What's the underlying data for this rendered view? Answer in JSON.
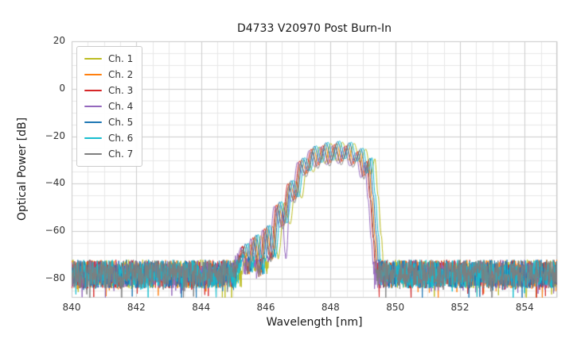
{
  "chart_data": {
    "type": "line",
    "title": "D4733 V20970 Post Burn-In",
    "xlabel": "Wavelength [nm]",
    "ylabel": "Optical Power [dB]",
    "xlim": [
      840,
      855
    ],
    "ylim": [
      -88,
      20
    ],
    "x_ticks": [
      840,
      842,
      844,
      846,
      848,
      850,
      852,
      854
    ],
    "y_ticks": [
      20,
      0,
      -20,
      -40,
      -60,
      -80
    ],
    "grid": {
      "major": true,
      "minor": true,
      "minor_x_step_nm": 0.5,
      "minor_y_step_db": 5
    },
    "legend": {
      "position": "upper-left"
    },
    "noise": {
      "floor_db": -78,
      "amplitude_db": 6,
      "spike_prob": 0.07,
      "spike_extra_db": 6,
      "sample_step_nm": 0.012,
      "seed": 12345
    },
    "base_spectrum": {
      "comment": "keypoints [wavelength_nm, power_db] of the multi-lobe laser spectrum; lobes peak near -23 dB around 848.2 nm",
      "points": [
        [
          845.1,
          -80
        ],
        [
          845.25,
          -72
        ],
        [
          845.38,
          -66
        ],
        [
          845.52,
          -79
        ],
        [
          845.7,
          -62
        ],
        [
          845.88,
          -80
        ],
        [
          846.06,
          -58
        ],
        [
          846.24,
          -72
        ],
        [
          846.42,
          -48
        ],
        [
          846.6,
          -57
        ],
        [
          846.78,
          -39
        ],
        [
          846.96,
          -46
        ],
        [
          847.14,
          -29.5
        ],
        [
          847.32,
          -35
        ],
        [
          847.5,
          -24.5
        ],
        [
          847.68,
          -31.5
        ],
        [
          847.86,
          -23
        ],
        [
          848.04,
          -30.5
        ],
        [
          848.22,
          -22.5
        ],
        [
          848.4,
          -30
        ],
        [
          848.58,
          -23
        ],
        [
          848.76,
          -31
        ],
        [
          848.94,
          -25.5
        ],
        [
          849.1,
          -36
        ],
        [
          849.22,
          -29.5
        ],
        [
          849.32,
          -45
        ],
        [
          849.42,
          -62
        ],
        [
          849.5,
          -80
        ]
      ]
    },
    "series": [
      {
        "name": "Ch. 1",
        "color": "#bcbd22",
        "x_offset_nm": 0.15,
        "y_offset_db": 0
      },
      {
        "name": "Ch. 2",
        "color": "#ff7f0e",
        "x_offset_nm": -0.04,
        "y_offset_db": -0.5
      },
      {
        "name": "Ch. 3",
        "color": "#d62728",
        "x_offset_nm": -0.1,
        "y_offset_db": -1.0
      },
      {
        "name": "Ch. 4",
        "color": "#9467bd",
        "x_offset_nm": -0.16,
        "y_offset_db": -1.5,
        "notch": {
          "x_nm": 846.62,
          "depth_db": -72,
          "width_nm": 0.1
        }
      },
      {
        "name": "Ch. 5",
        "color": "#1f77b4",
        "x_offset_nm": 0.0,
        "y_offset_db": 0.3
      },
      {
        "name": "Ch. 6",
        "color": "#17becf",
        "x_offset_nm": 0.06,
        "y_offset_db": 0.5
      },
      {
        "name": "Ch. 7",
        "color": "#7f7f7f",
        "x_offset_nm": -0.07,
        "y_offset_db": -2.0
      }
    ]
  }
}
